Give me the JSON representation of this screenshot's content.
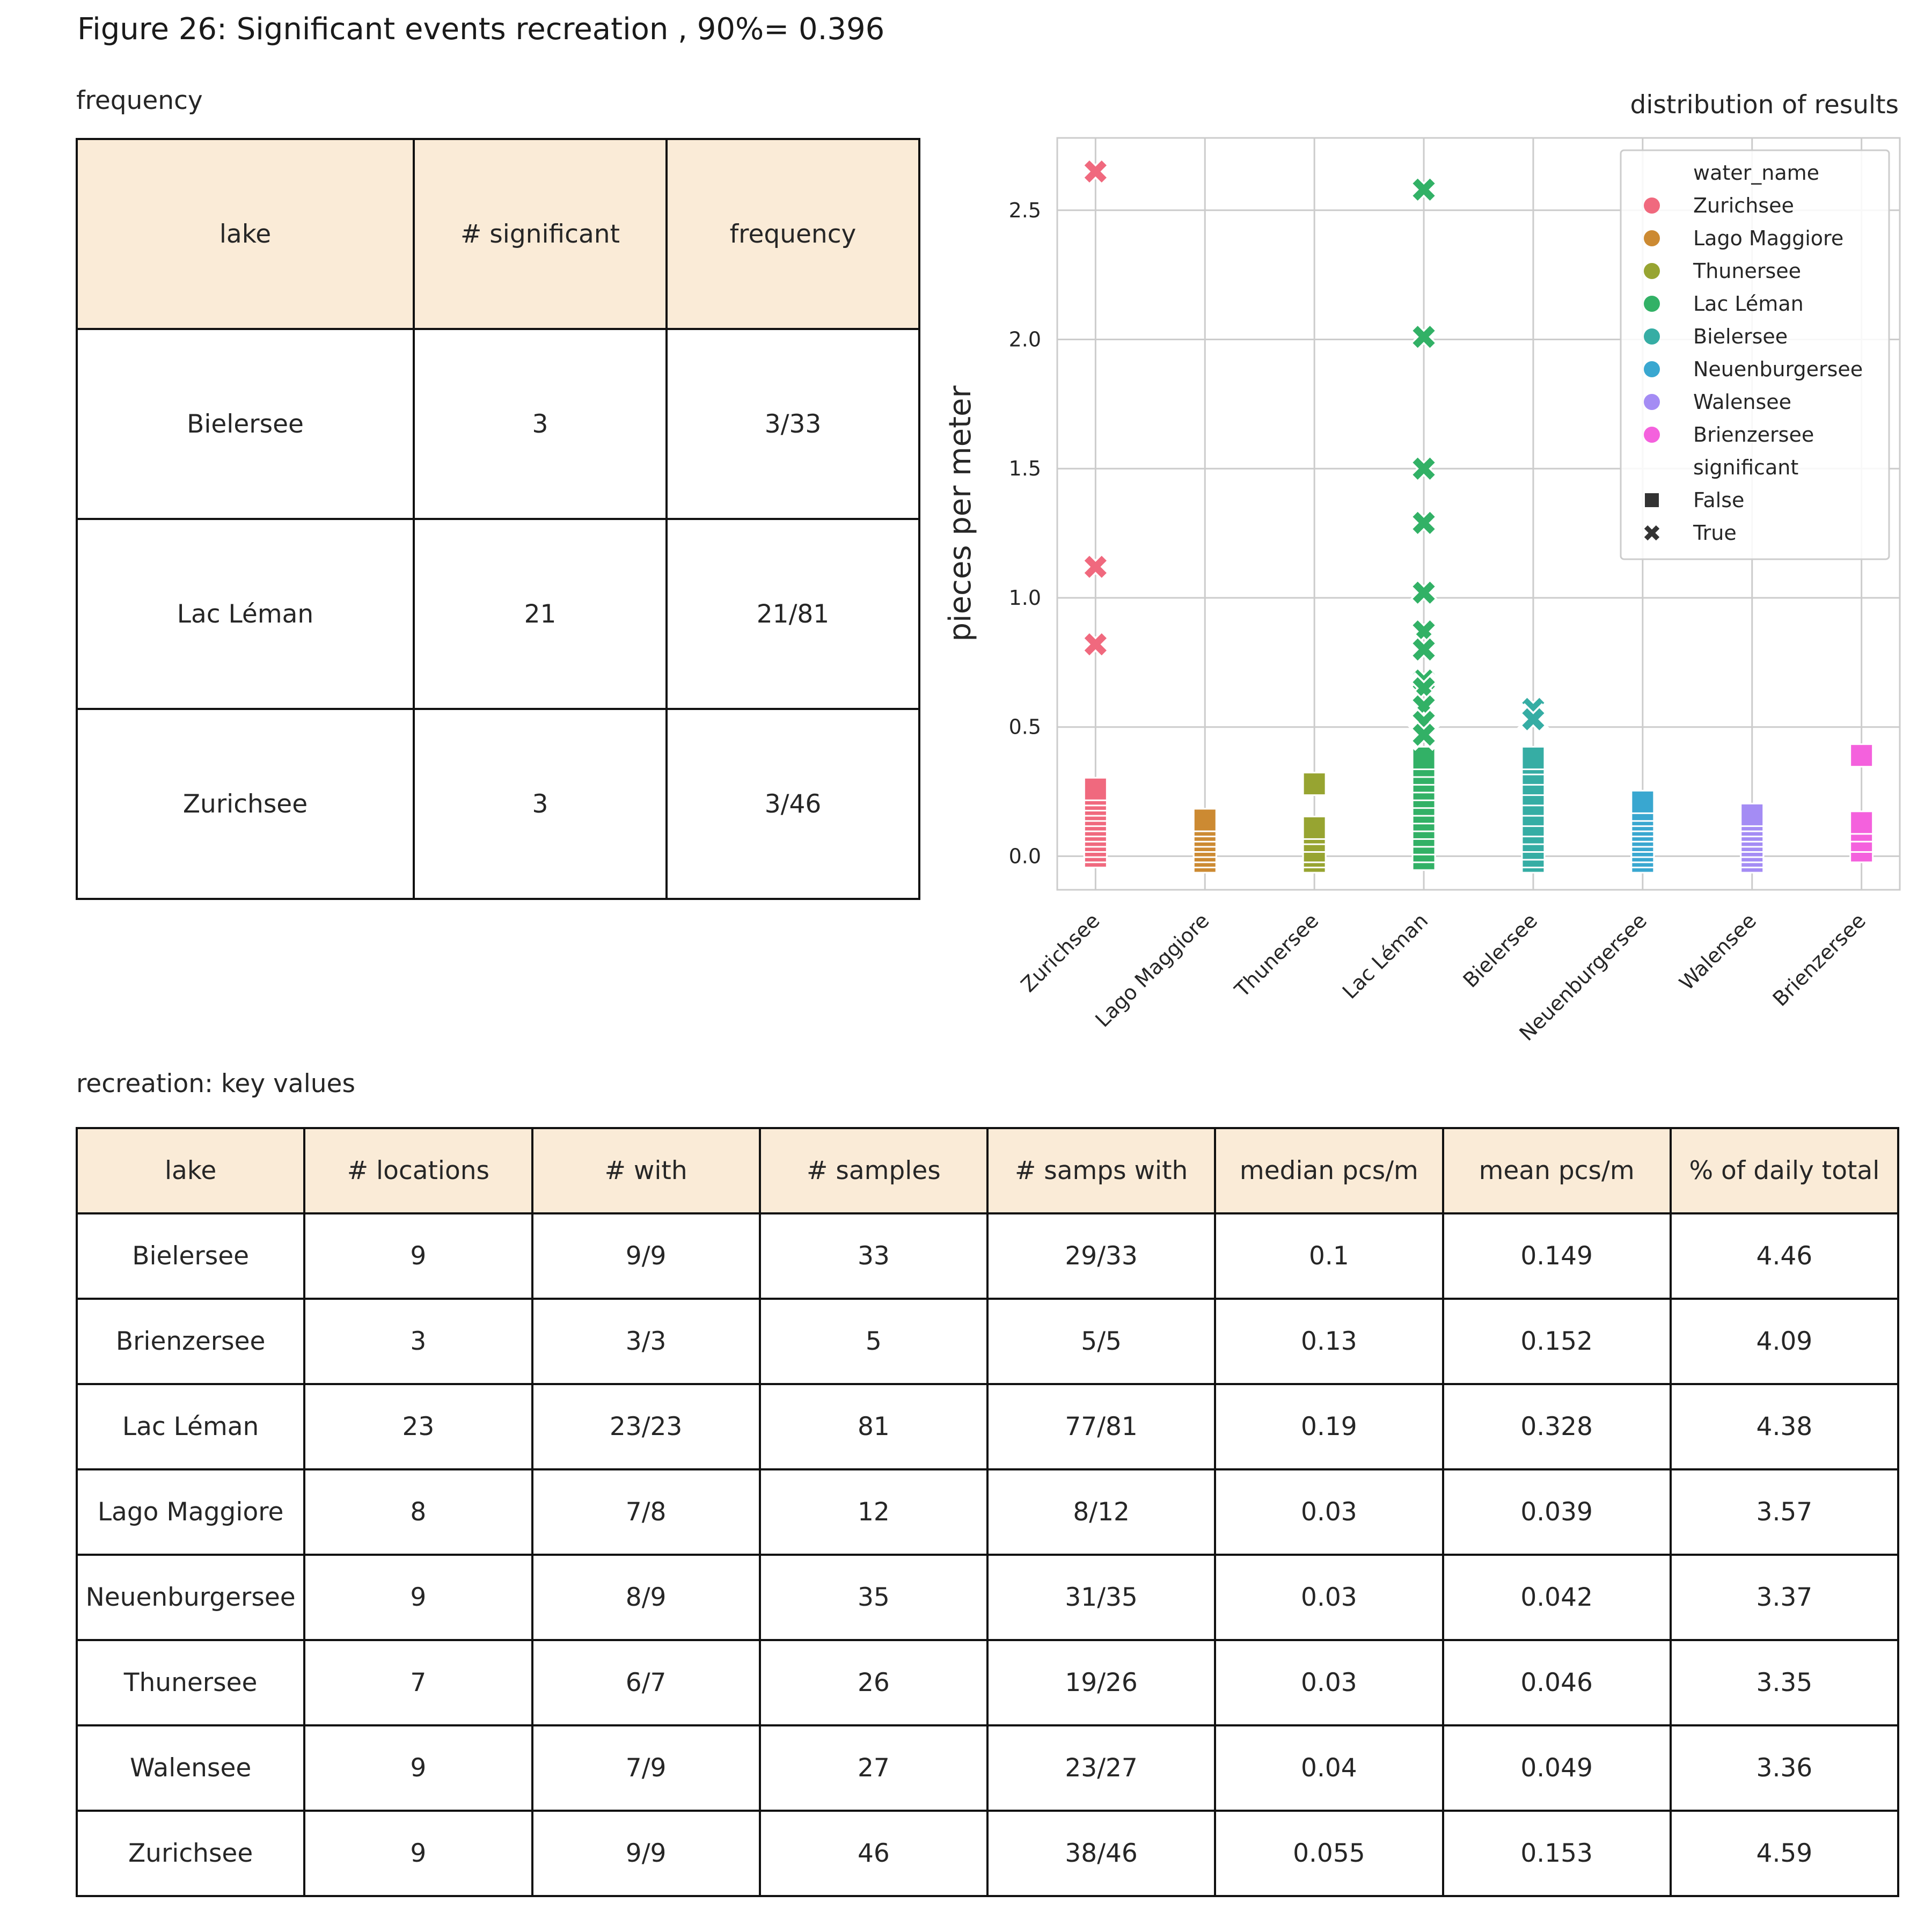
{
  "title": "Figure 26: Significant events recreation , 90%= 0.396",
  "frequency_table": {
    "title": "frequency",
    "columns": [
      "lake",
      "# significant",
      "frequency"
    ],
    "rows": [
      [
        "Bielersee",
        "3",
        "3/33"
      ],
      [
        "Lac Léman",
        "21",
        "21/81"
      ],
      [
        "Zurichsee",
        "3",
        "3/46"
      ]
    ]
  },
  "key_values_table": {
    "title": "recreation: key values",
    "columns": [
      "lake",
      "# locations",
      "# with",
      "# samples",
      "# samps with",
      "median pcs/m",
      "mean pcs/m",
      "% of daily total"
    ],
    "rows": [
      [
        "Bielersee",
        "9",
        "9/9",
        "33",
        "29/33",
        "0.1",
        "0.149",
        "4.46"
      ],
      [
        "Brienzersee",
        "3",
        "3/3",
        "5",
        "5/5",
        "0.13",
        "0.152",
        "4.09"
      ],
      [
        "Lac Léman",
        "23",
        "23/23",
        "81",
        "77/81",
        "0.19",
        "0.328",
        "4.38"
      ],
      [
        "Lago Maggiore",
        "8",
        "7/8",
        "12",
        "8/12",
        "0.03",
        "0.039",
        "3.57"
      ],
      [
        "Neuenburgersee",
        "9",
        "8/9",
        "35",
        "31/35",
        "0.03",
        "0.042",
        "3.37"
      ],
      [
        "Thunersee",
        "7",
        "6/7",
        "26",
        "19/26",
        "0.03",
        "0.046",
        "3.35"
      ],
      [
        "Walensee",
        "9",
        "7/9",
        "27",
        "23/27",
        "0.04",
        "0.049",
        "3.36"
      ],
      [
        "Zurichsee",
        "9",
        "9/9",
        "46",
        "38/46",
        "0.055",
        "0.153",
        "4.59"
      ]
    ]
  },
  "colors": {
    "Zurichsee": "#f0697e",
    "Lago Maggiore": "#cc8a32",
    "Thunersee": "#97a431",
    "Lac Léman": "#32b166",
    "Bielersee": "#36ada4",
    "Neuenburgersee": "#39a7d0",
    "Walensee": "#a48cf4",
    "Brienzersee": "#f461dd",
    "header_bg": "#faebd7"
  },
  "chart_data": {
    "type": "scatter",
    "title": "distribution of results",
    "xlabel": "",
    "ylabel": "pieces per meter",
    "categories": [
      "Zurichsee",
      "Lago Maggiore",
      "Thunersee",
      "Lac Léman",
      "Bielersee",
      "Neuenburgersee",
      "Walensee",
      "Brienzersee"
    ],
    "ylim": [
      -0.13,
      2.78
    ],
    "yticks": [
      0.0,
      0.5,
      1.0,
      1.5,
      2.0,
      2.5
    ],
    "ytick_labels": [
      "0.0",
      "0.5",
      "1.0",
      "1.5",
      "2.0",
      "2.5"
    ],
    "grid": true,
    "legend": {
      "placement": "top-right",
      "hue_title": "water_name",
      "style_title": "significant",
      "style_entries": [
        {
          "label": "False",
          "marker": "square"
        },
        {
          "label": "True",
          "marker": "x"
        }
      ]
    },
    "series": [
      {
        "name": "Zurichsee",
        "false": [
          0.0,
          0.02,
          0.04,
          0.06,
          0.08,
          0.1,
          0.12,
          0.14,
          0.16,
          0.18,
          0.2,
          0.22,
          0.24,
          0.26
        ],
        "true": [
          2.65,
          1.12,
          0.82
        ]
      },
      {
        "name": "Lago Maggiore",
        "false": [
          -0.02,
          0.0,
          0.02,
          0.04,
          0.06,
          0.08,
          0.1,
          0.12,
          0.14
        ],
        "true": []
      },
      {
        "name": "Thunersee",
        "false": [
          -0.02,
          0.0,
          0.02,
          0.06,
          0.09,
          0.11,
          0.28
        ],
        "true": []
      },
      {
        "name": "Lac Léman",
        "false": [
          -0.01,
          0.02,
          0.05,
          0.08,
          0.11,
          0.14,
          0.17,
          0.2,
          0.23,
          0.26,
          0.29,
          0.32,
          0.35,
          0.38
        ],
        "true": [
          2.58,
          2.01,
          1.5,
          1.29,
          1.02,
          0.87,
          0.8,
          0.68,
          0.65,
          0.58,
          0.52,
          0.47
        ]
      },
      {
        "name": "Bielersee",
        "false": [
          -0.02,
          0.0,
          0.03,
          0.06,
          0.09,
          0.12,
          0.16,
          0.2,
          0.24,
          0.28,
          0.32,
          0.36,
          0.38
        ],
        "true": [
          0.57,
          0.53
        ]
      },
      {
        "name": "Neuenburgersee",
        "false": [
          -0.02,
          0.0,
          0.02,
          0.04,
          0.06,
          0.08,
          0.1,
          0.12,
          0.14,
          0.16,
          0.18,
          0.21
        ],
        "true": []
      },
      {
        "name": "Walensee",
        "false": [
          -0.02,
          0.0,
          0.02,
          0.04,
          0.06,
          0.08,
          0.1,
          0.12,
          0.14,
          0.16
        ],
        "true": []
      },
      {
        "name": "Brienzersee",
        "false": [
          0.02,
          0.06,
          0.1,
          0.13,
          0.39
        ],
        "true": []
      }
    ]
  }
}
